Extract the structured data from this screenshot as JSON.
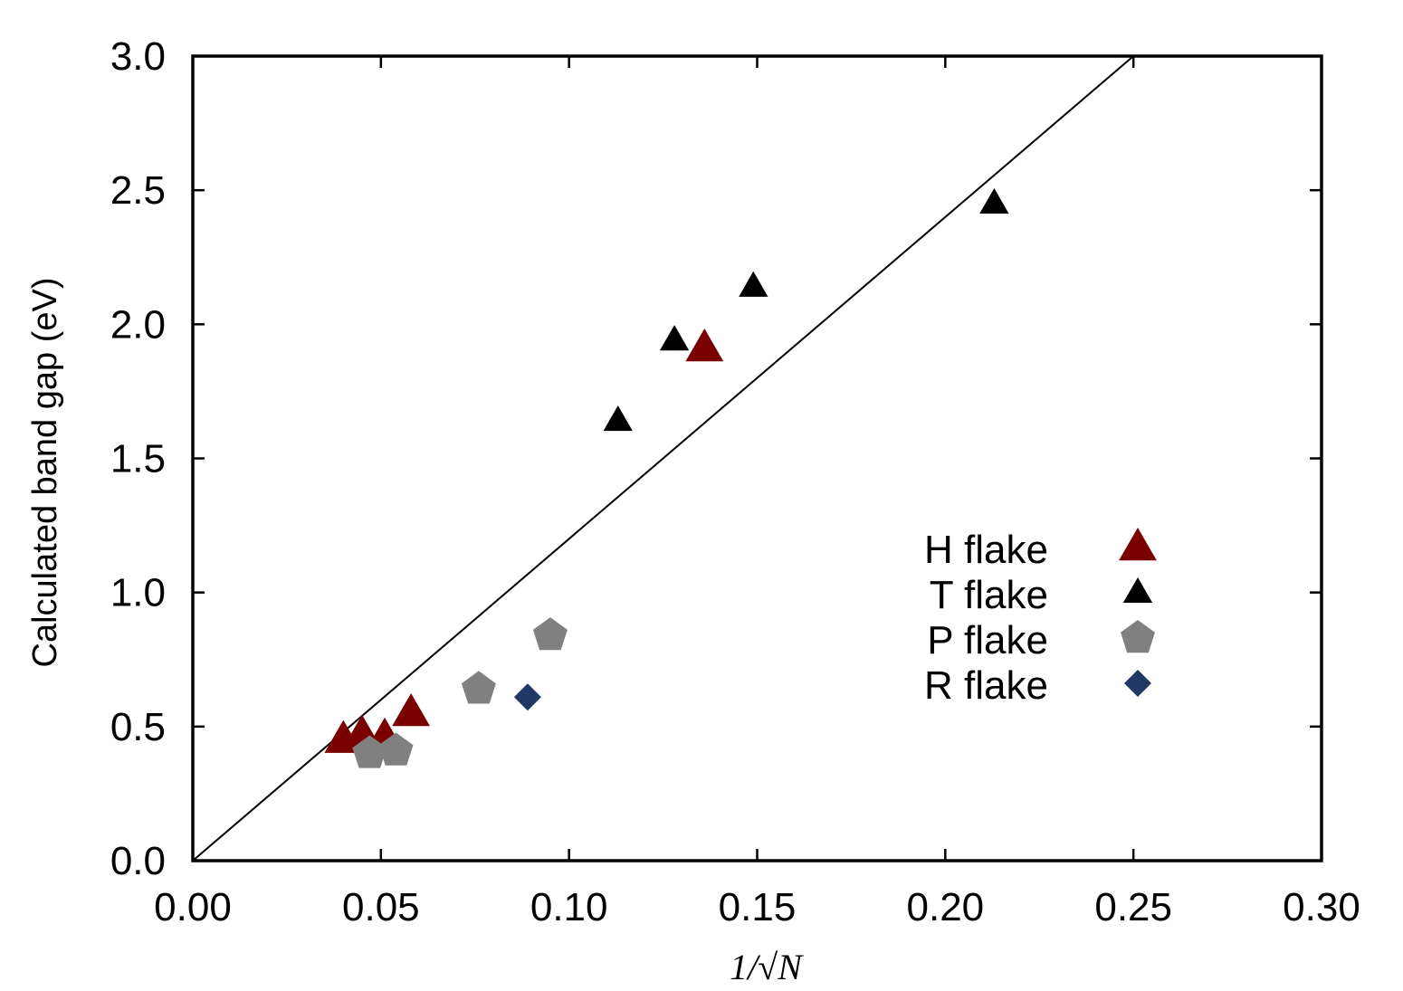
{
  "chart_data": {
    "type": "scatter",
    "title": "",
    "xlabel": "1/√N",
    "ylabel": "Calculated band gap (eV)",
    "xlim": [
      0.0,
      0.3
    ],
    "ylim": [
      0.0,
      3.0
    ],
    "x_ticks": [
      "0.00",
      "0.05",
      "0.10",
      "0.15",
      "0.20",
      "0.25",
      "0.30"
    ],
    "y_ticks": [
      "0.0",
      "0.5",
      "1.0",
      "1.5",
      "2.0",
      "2.5",
      "3.0"
    ],
    "grid": false,
    "legend_position": "center-right",
    "reference_line": {
      "from": [
        0.0,
        0.0
      ],
      "to": [
        0.25,
        3.0
      ],
      "color": "#000000"
    },
    "series": [
      {
        "name": "H flake",
        "marker": "triangle",
        "color": "#7a0000",
        "points": [
          [
            0.04,
            0.45
          ],
          [
            0.045,
            0.47
          ],
          [
            0.051,
            0.46
          ],
          [
            0.058,
            0.55
          ],
          [
            0.136,
            1.91
          ]
        ]
      },
      {
        "name": "T flake",
        "marker": "triangle-small",
        "color": "#000000",
        "points": [
          [
            0.113,
            1.64
          ],
          [
            0.128,
            1.94
          ],
          [
            0.149,
            2.14
          ],
          [
            0.213,
            2.45
          ]
        ]
      },
      {
        "name": "P flake",
        "marker": "pentagon",
        "color": "#808080",
        "points": [
          [
            0.047,
            0.4
          ],
          [
            0.054,
            0.41
          ],
          [
            0.076,
            0.64
          ],
          [
            0.095,
            0.84
          ]
        ]
      },
      {
        "name": "R flake",
        "marker": "diamond",
        "color": "#1f3864",
        "points": [
          [
            0.089,
            0.61
          ]
        ]
      }
    ]
  }
}
